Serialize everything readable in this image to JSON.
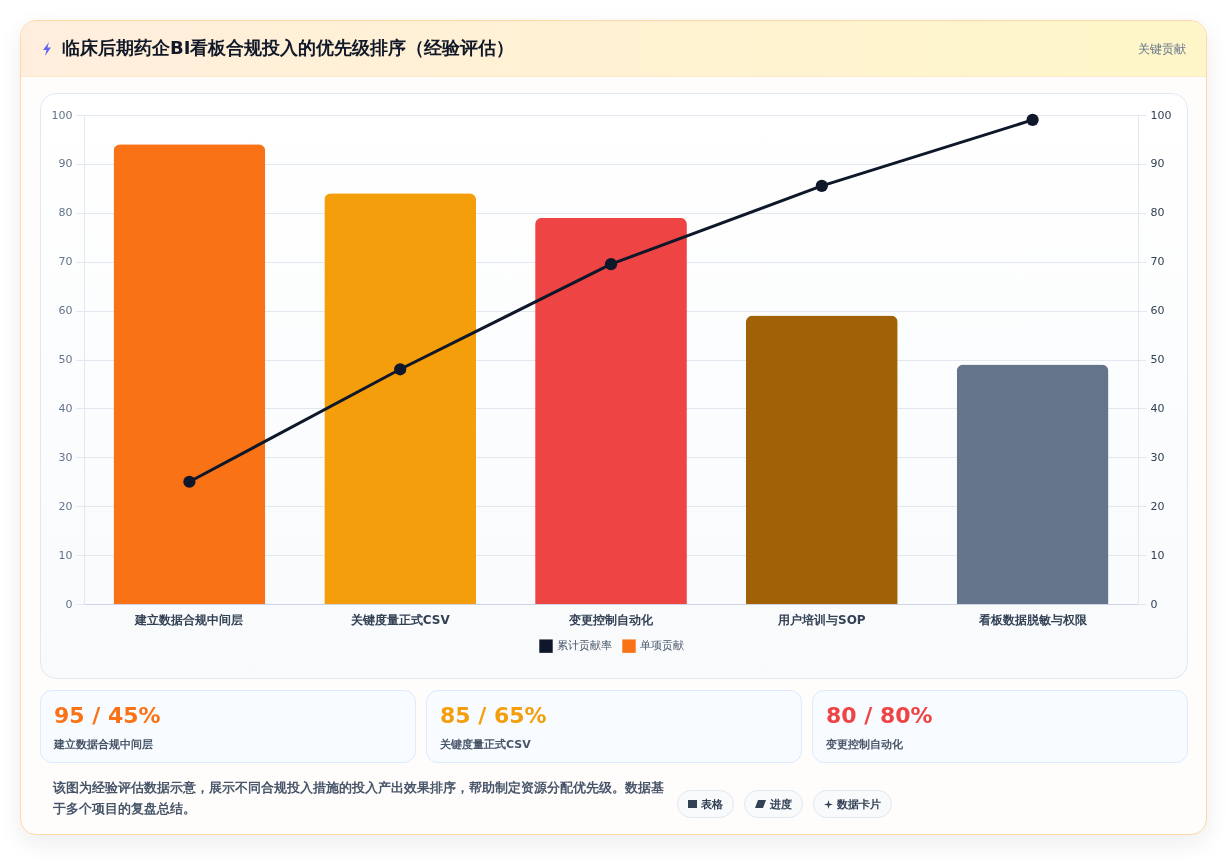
{
  "chart_data": [
    {
      "type": "bar",
      "title": "临床后期药企BI看板合规投入的优先级排序（经验评估）",
      "categories": [
        "建立数据合规中间层",
        "关键度量正式CSV",
        "变更控制自动化",
        "用户培训与SOP",
        "看板数据脱敏与权限"
      ],
      "series": [
        {
          "name": "累计贡献率",
          "type": "line",
          "color": "#0f172a",
          "axis": "y2",
          "values": [
            25,
            48,
            69.5,
            85.5,
            99
          ]
        },
        {
          "name": "单项贡献",
          "type": "bar",
          "colors": [
            "#f97316",
            "#f59e0b",
            "#ef4444",
            "#a16207",
            "#64748b"
          ],
          "values": [
            94,
            84,
            79,
            59,
            49
          ]
        }
      ],
      "ylim": [
        0,
        100
      ],
      "yticks": [
        0,
        10,
        20,
        30,
        40,
        50,
        60,
        70,
        80,
        90,
        100
      ],
      "y2lim": [
        0,
        100
      ],
      "y2ticks": [
        0,
        10,
        20,
        30,
        40,
        50,
        60,
        70,
        80,
        90,
        100
      ],
      "grid": "y",
      "legend": "bottom",
      "marker": "circle",
      "annotations": [
        "关键贡献",
        "该图为经验评估数据示意，展示不同合规投入措施的投入产出效果排序，帮助制定资源分配优先级。数据基于多个项目的复盘总结。",
        "表格",
        "进度",
        "数据卡片"
      ]
    },
    {
      "type": "other",
      "colors": [
        "#f97316",
        "#f59e0b",
        "#ef4444"
      ],
      "annotations": [
        "95 / 45%",
        "建立数据合规中间层",
        "85 / 65%",
        "关键度量正式CSV",
        "80 / 80%",
        "变更控制自动化"
      ]
    }
  ]
}
